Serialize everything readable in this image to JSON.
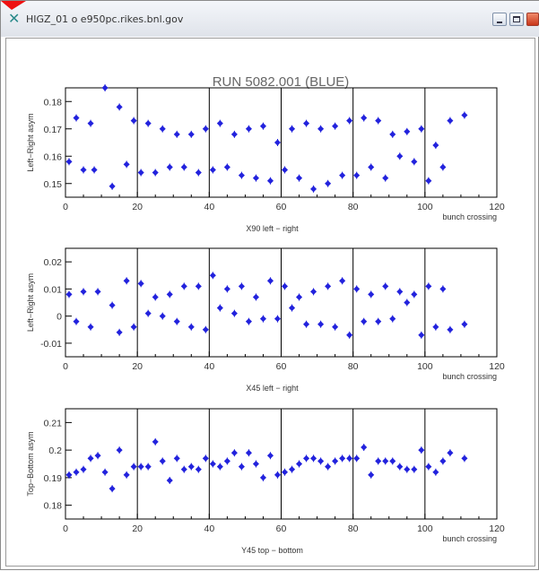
{
  "window": {
    "title": "HIGZ_01 o e950pc.rikes.bnl.gov",
    "icon": "cross-icon"
  },
  "colors": {
    "marker": "#2222dd",
    "frame": "#000000",
    "title": "#666666"
  },
  "chart_data": [
    {
      "type": "scatter",
      "title": "RUN 5082.001 (BLUE)",
      "xlabel": "X90 left − right",
      "xlabel_right": "bunch crossing",
      "ylabel": "Left−Right asym",
      "xlim": [
        0,
        120
      ],
      "ylim": [
        -0.185,
        -0.145
      ],
      "y_reversed": true,
      "xticks": [
        0,
        20,
        40,
        60,
        80,
        100,
        120
      ],
      "yticks": [
        {
          "v": -0.15,
          "t": "0.15"
        },
        {
          "v": -0.16,
          "t": "0.16"
        },
        {
          "v": -0.17,
          "t": "0.17"
        },
        {
          "v": -0.18,
          "t": "0.18"
        }
      ],
      "vlines": [
        20,
        40,
        60,
        80,
        100
      ],
      "points": [
        [
          1,
          -0.158
        ],
        [
          3,
          -0.174
        ],
        [
          5,
          -0.155
        ],
        [
          7,
          -0.172
        ],
        [
          8,
          -0.155
        ],
        [
          11,
          -0.185
        ],
        [
          13,
          -0.149
        ],
        [
          15,
          -0.178
        ],
        [
          17,
          -0.157
        ],
        [
          19,
          -0.173
        ],
        [
          21,
          -0.154
        ],
        [
          23,
          -0.172
        ],
        [
          25,
          -0.154
        ],
        [
          27,
          -0.17
        ],
        [
          29,
          -0.156
        ],
        [
          31,
          -0.168
        ],
        [
          33,
          -0.156
        ],
        [
          35,
          -0.168
        ],
        [
          37,
          -0.154
        ],
        [
          39,
          -0.17
        ],
        [
          41,
          -0.155
        ],
        [
          43,
          -0.172
        ],
        [
          45,
          -0.156
        ],
        [
          47,
          -0.168
        ],
        [
          49,
          -0.153
        ],
        [
          51,
          -0.17
        ],
        [
          53,
          -0.152
        ],
        [
          55,
          -0.171
        ],
        [
          57,
          -0.151
        ],
        [
          59,
          -0.165
        ],
        [
          61,
          -0.155
        ],
        [
          63,
          -0.17
        ],
        [
          65,
          -0.152
        ],
        [
          67,
          -0.172
        ],
        [
          69,
          -0.148
        ],
        [
          71,
          -0.17
        ],
        [
          73,
          -0.15
        ],
        [
          75,
          -0.171
        ],
        [
          77,
          -0.153
        ],
        [
          79,
          -0.173
        ],
        [
          81,
          -0.153
        ],
        [
          83,
          -0.174
        ],
        [
          85,
          -0.156
        ],
        [
          87,
          -0.173
        ],
        [
          89,
          -0.152
        ],
        [
          91,
          -0.168
        ],
        [
          93,
          -0.16
        ],
        [
          95,
          -0.169
        ],
        [
          97,
          -0.158
        ],
        [
          99,
          -0.17
        ],
        [
          101,
          -0.151
        ],
        [
          103,
          -0.164
        ],
        [
          105,
          -0.156
        ],
        [
          107,
          -0.173
        ],
        [
          111,
          -0.175
        ]
      ]
    },
    {
      "type": "scatter",
      "xlabel": "X45 left − right",
      "xlabel_right": "bunch crossing",
      "ylabel": "Left−Right asym",
      "xlim": [
        0,
        120
      ],
      "ylim": [
        -0.015,
        0.025
      ],
      "xticks": [
        0,
        20,
        40,
        60,
        80,
        100,
        120
      ],
      "yticks": [
        {
          "v": 0.02,
          "t": "0.02"
        },
        {
          "v": 0.01,
          "t": "0.01"
        },
        {
          "v": 0.0,
          "t": "0"
        },
        {
          "v": -0.01,
          "t": "-0.01"
        }
      ],
      "vlines": [
        20,
        40,
        60,
        80,
        100
      ],
      "points": [
        [
          1,
          0.008
        ],
        [
          3,
          -0.002
        ],
        [
          5,
          0.009
        ],
        [
          7,
          -0.004
        ],
        [
          9,
          0.009
        ],
        [
          13,
          0.004
        ],
        [
          15,
          -0.006
        ],
        [
          17,
          0.013
        ],
        [
          19,
          -0.004
        ],
        [
          21,
          0.012
        ],
        [
          23,
          0.001
        ],
        [
          25,
          0.007
        ],
        [
          27,
          0.0
        ],
        [
          29,
          0.008
        ],
        [
          31,
          -0.002
        ],
        [
          33,
          0.011
        ],
        [
          35,
          -0.004
        ],
        [
          37,
          0.011
        ],
        [
          39,
          -0.005
        ],
        [
          41,
          0.015
        ],
        [
          43,
          0.003
        ],
        [
          45,
          0.01
        ],
        [
          47,
          0.001
        ],
        [
          49,
          0.011
        ],
        [
          51,
          -0.002
        ],
        [
          53,
          0.007
        ],
        [
          55,
          -0.001
        ],
        [
          57,
          0.013
        ],
        [
          59,
          -0.001
        ],
        [
          61,
          0.011
        ],
        [
          63,
          0.003
        ],
        [
          65,
          0.007
        ],
        [
          67,
          -0.003
        ],
        [
          69,
          0.009
        ],
        [
          71,
          -0.003
        ],
        [
          73,
          0.011
        ],
        [
          75,
          -0.004
        ],
        [
          77,
          0.013
        ],
        [
          79,
          -0.007
        ],
        [
          81,
          0.01
        ],
        [
          83,
          -0.002
        ],
        [
          85,
          0.008
        ],
        [
          87,
          -0.002
        ],
        [
          89,
          0.011
        ],
        [
          91,
          -0.001
        ],
        [
          93,
          0.009
        ],
        [
          95,
          0.005
        ],
        [
          97,
          0.008
        ],
        [
          99,
          -0.007
        ],
        [
          101,
          0.011
        ],
        [
          103,
          -0.004
        ],
        [
          105,
          0.01
        ],
        [
          107,
          -0.005
        ],
        [
          111,
          -0.003
        ]
      ]
    },
    {
      "type": "scatter",
      "xlabel": "Y45 top − bottom",
      "xlabel_right": "bunch crossing",
      "ylabel": "Top−Bottom asym",
      "xlim": [
        0,
        120
      ],
      "ylim": [
        -0.215,
        -0.175
      ],
      "y_reversed": true,
      "xticks": [
        0,
        20,
        40,
        60,
        80,
        100,
        120
      ],
      "yticks": [
        {
          "v": -0.18,
          "t": "0.18"
        },
        {
          "v": -0.19,
          "t": "0.19"
        },
        {
          "v": -0.2,
          "t": "0.2"
        },
        {
          "v": -0.21,
          "t": "0.21"
        }
      ],
      "vlines": [
        20,
        40,
        60,
        80,
        100
      ],
      "points": [
        [
          1,
          -0.191
        ],
        [
          3,
          -0.192
        ],
        [
          5,
          -0.193
        ],
        [
          7,
          -0.197
        ],
        [
          9,
          -0.198
        ],
        [
          11,
          -0.192
        ],
        [
          13,
          -0.186
        ],
        [
          15,
          -0.2
        ],
        [
          17,
          -0.191
        ],
        [
          19,
          -0.194
        ],
        [
          21,
          -0.194
        ],
        [
          23,
          -0.194
        ],
        [
          25,
          -0.203
        ],
        [
          27,
          -0.196
        ],
        [
          29,
          -0.189
        ],
        [
          31,
          -0.197
        ],
        [
          33,
          -0.193
        ],
        [
          35,
          -0.194
        ],
        [
          37,
          -0.193
        ],
        [
          39,
          -0.197
        ],
        [
          41,
          -0.195
        ],
        [
          43,
          -0.194
        ],
        [
          45,
          -0.196
        ],
        [
          47,
          -0.199
        ],
        [
          49,
          -0.194
        ],
        [
          51,
          -0.199
        ],
        [
          53,
          -0.195
        ],
        [
          55,
          -0.19
        ],
        [
          57,
          -0.198
        ],
        [
          59,
          -0.191
        ],
        [
          61,
          -0.192
        ],
        [
          63,
          -0.193
        ],
        [
          65,
          -0.195
        ],
        [
          67,
          -0.197
        ],
        [
          69,
          -0.197
        ],
        [
          71,
          -0.196
        ],
        [
          73,
          -0.194
        ],
        [
          75,
          -0.196
        ],
        [
          77,
          -0.197
        ],
        [
          79,
          -0.197
        ],
        [
          81,
          -0.197
        ],
        [
          83,
          -0.201
        ],
        [
          85,
          -0.191
        ],
        [
          87,
          -0.196
        ],
        [
          89,
          -0.196
        ],
        [
          91,
          -0.196
        ],
        [
          93,
          -0.194
        ],
        [
          95,
          -0.193
        ],
        [
          97,
          -0.193
        ],
        [
          99,
          -0.2
        ],
        [
          101,
          -0.194
        ],
        [
          103,
          -0.192
        ],
        [
          105,
          -0.196
        ],
        [
          107,
          -0.199
        ],
        [
          111,
          -0.197
        ]
      ]
    }
  ]
}
